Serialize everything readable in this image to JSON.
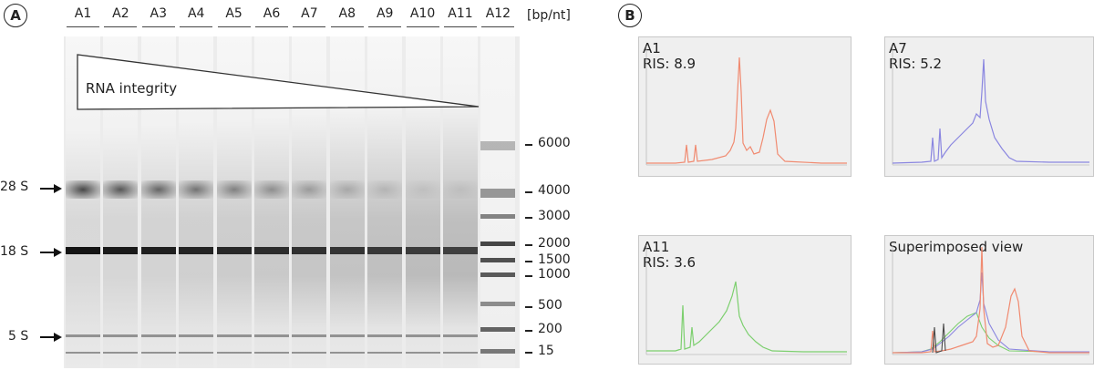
{
  "panel_a": {
    "letter": "A",
    "lanes": [
      "A1",
      "A2",
      "A3",
      "A4",
      "A5",
      "A6",
      "A7",
      "A8",
      "A9",
      "A10",
      "A11",
      "A12"
    ],
    "unit": "[bp/nt]",
    "integrity_label": "RNA integrity",
    "markers": [
      {
        "label": "28 S"
      },
      {
        "label": "18 S"
      },
      {
        "label": "5 S"
      }
    ],
    "ladder_sizes": [
      "6000",
      "4000",
      "3000",
      "2000",
      "1500",
      "1000",
      "500",
      "200",
      "15"
    ]
  },
  "panel_b": {
    "letter": "B",
    "charts": [
      {
        "sample": "A1",
        "ris": "RIS: 8.9",
        "color": "#f08a70"
      },
      {
        "sample": "A7",
        "ris": "RIS: 5.2",
        "color": "#8a86e0"
      },
      {
        "sample": "A11",
        "ris": "RIS: 3.6",
        "color": "#7ccf6e"
      },
      {
        "sample": "Superimposed view",
        "ris": "",
        "color": "#444444"
      }
    ]
  }
}
